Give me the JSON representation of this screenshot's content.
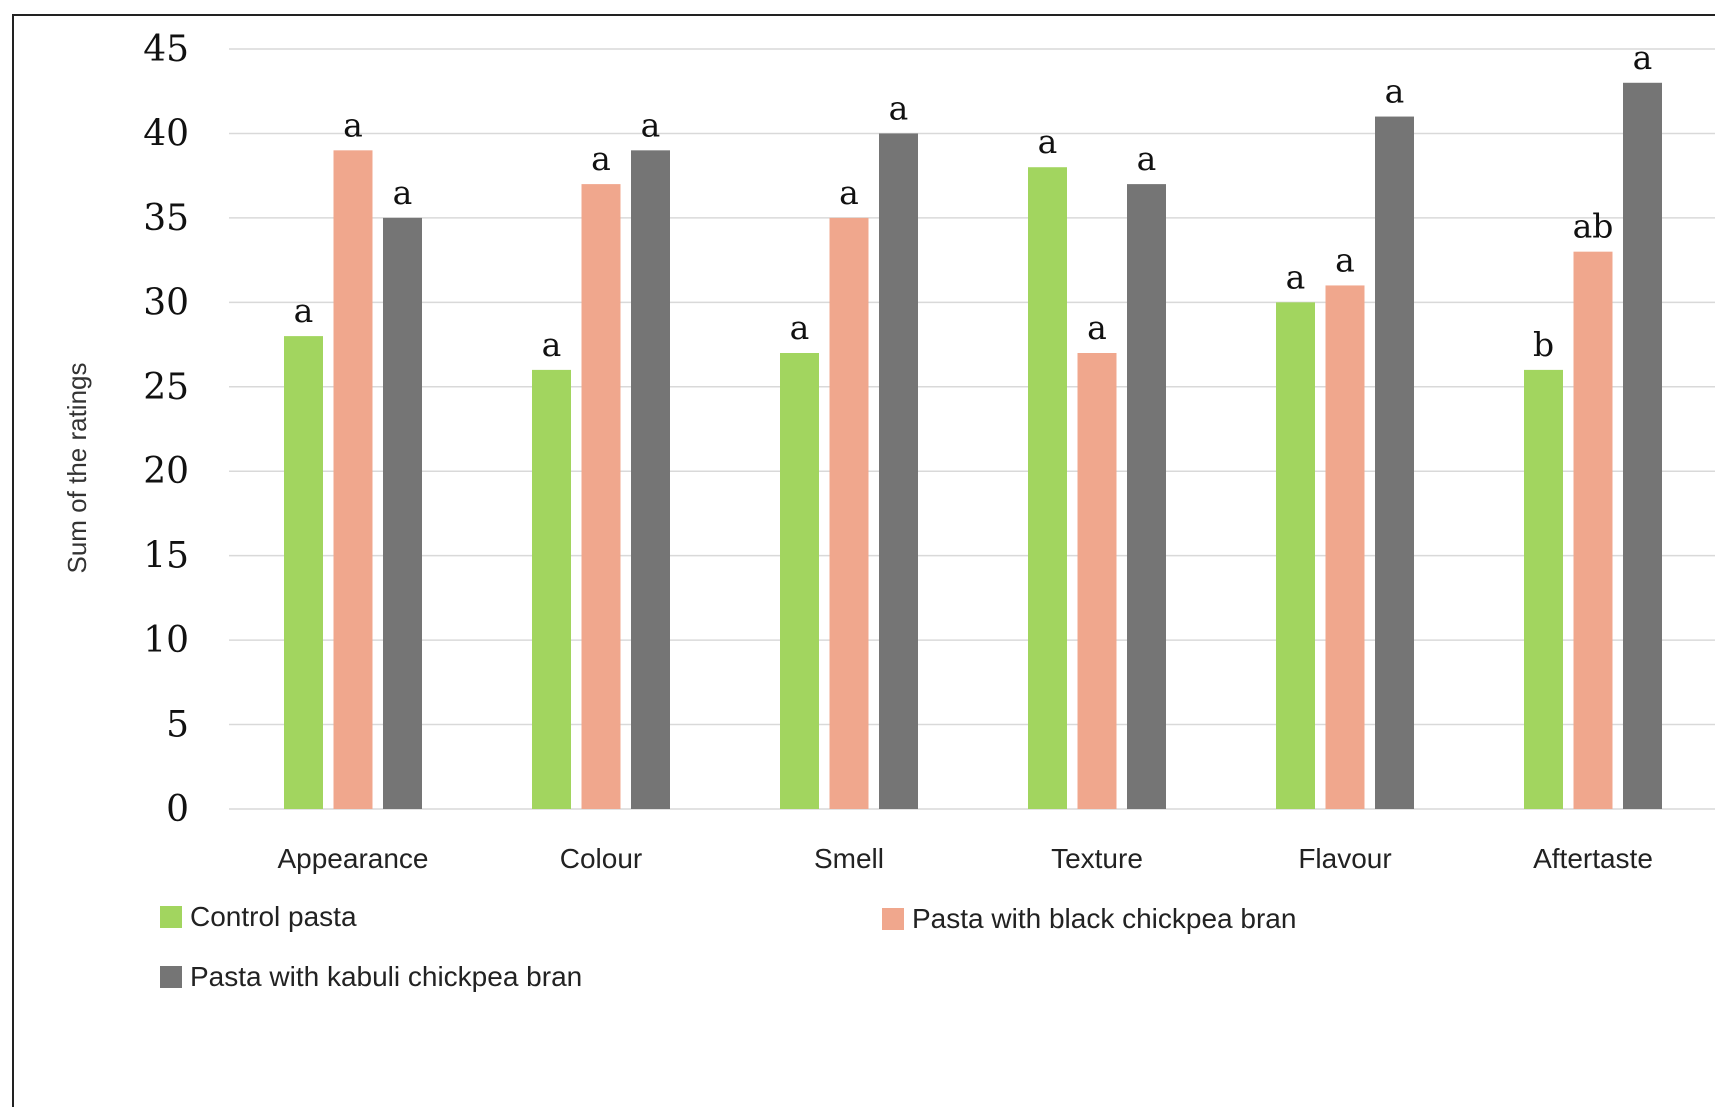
{
  "chart_data": {
    "type": "bar",
    "ylabel": "Sum of the ratings",
    "xlabel": "",
    "ylim": [
      0,
      45
    ],
    "yticks": [
      0,
      5,
      10,
      15,
      20,
      25,
      30,
      35,
      40,
      45
    ],
    "grid": true,
    "legend_position": "bottom",
    "categories": [
      "Appearance",
      "Colour",
      "Smell",
      "Texture",
      "Flavour",
      "Aftertaste"
    ],
    "series": [
      {
        "name": "Control pasta",
        "color": "#a2d55f",
        "values": [
          28,
          26,
          27,
          38,
          30,
          26
        ],
        "labels": [
          "a",
          "a",
          "a",
          "a",
          "a",
          "b"
        ]
      },
      {
        "name": "Pasta with black chickpea bran",
        "color": "#f0a78d",
        "values": [
          39,
          37,
          35,
          27,
          31,
          33
        ],
        "labels": [
          "a",
          "a",
          "a",
          "a",
          "a",
          "ab"
        ]
      },
      {
        "name": "Pasta with kabuli chickpea bran",
        "color": "#757575",
        "values": [
          35,
          39,
          40,
          37,
          41,
          43
        ],
        "labels": [
          "a",
          "a",
          "a",
          "a",
          "a",
          "a"
        ]
      }
    ]
  }
}
